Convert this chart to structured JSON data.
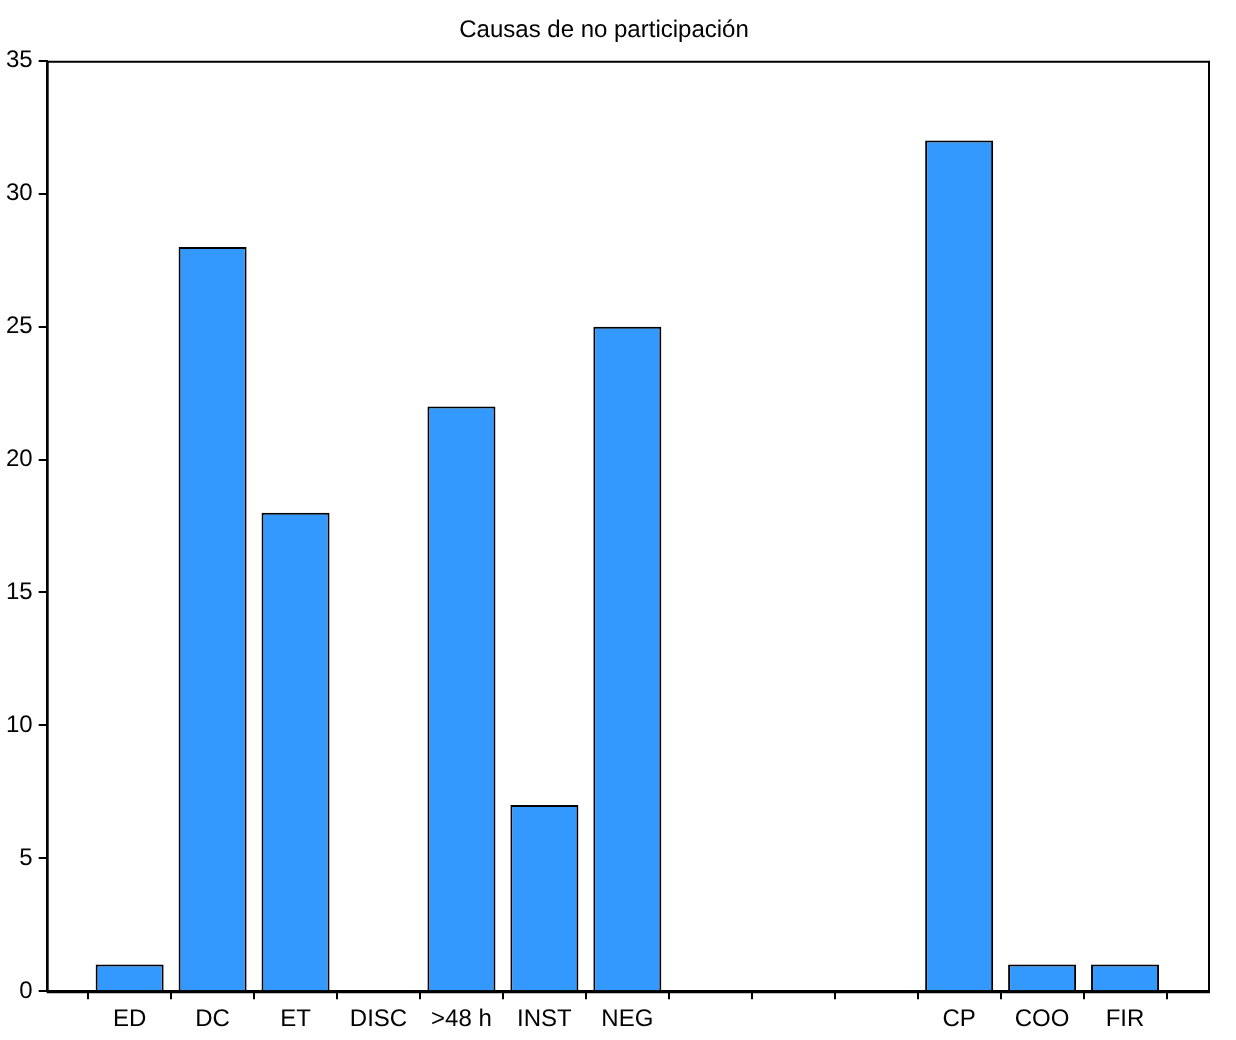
{
  "chart_data": {
    "type": "bar",
    "title": "Causas de no participación",
    "categories": [
      "ED",
      "DC",
      "ET",
      "DISC",
      ">48 h",
      "INST",
      "NEG",
      null,
      null,
      null,
      "CP",
      "COO",
      "FIR"
    ],
    "values": [
      1,
      28,
      18,
      0,
      22,
      7,
      25,
      null,
      null,
      null,
      32,
      1,
      1
    ],
    "color": "#3399ff",
    "ylim": [
      0,
      35
    ],
    "yticks": [
      0,
      5,
      10,
      15,
      20,
      25,
      30,
      35
    ]
  }
}
